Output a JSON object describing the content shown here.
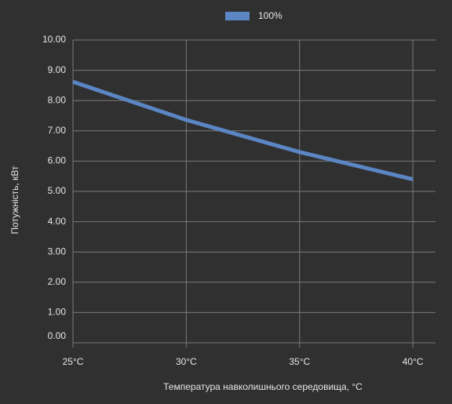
{
  "chart_data": {
    "type": "line",
    "x_label": "Температура навколишнього середовища, °C",
    "y_label": "Потужність, кВт",
    "x": [
      25,
      30,
      35,
      40
    ],
    "xticks": [
      {
        "value": 25,
        "label": "25°C"
      },
      {
        "value": 30,
        "label": "30°C"
      },
      {
        "value": 35,
        "label": "35°C"
      },
      {
        "value": 40,
        "label": "40°C"
      }
    ],
    "xlim": [
      25,
      41
    ],
    "series": [
      {
        "name": "100%",
        "color": "#5b86c4",
        "values": [
          8.62,
          7.36,
          6.3,
          5.4
        ]
      }
    ],
    "ylim": [
      0,
      10
    ],
    "yticks": [
      {
        "value": 0,
        "label": "0.00"
      },
      {
        "value": 1,
        "label": "1.00"
      },
      {
        "value": 2,
        "label": "2.00"
      },
      {
        "value": 3,
        "label": "3.00"
      },
      {
        "value": 4,
        "label": "4.00"
      },
      {
        "value": 5,
        "label": "5.00"
      },
      {
        "value": 6,
        "label": "6.00"
      },
      {
        "value": 7,
        "label": "7.00"
      },
      {
        "value": 8,
        "label": "8.00"
      },
      {
        "value": 9,
        "label": "9.00"
      },
      {
        "value": 10,
        "label": "10.00"
      }
    ],
    "grid": true,
    "legend": "top"
  }
}
